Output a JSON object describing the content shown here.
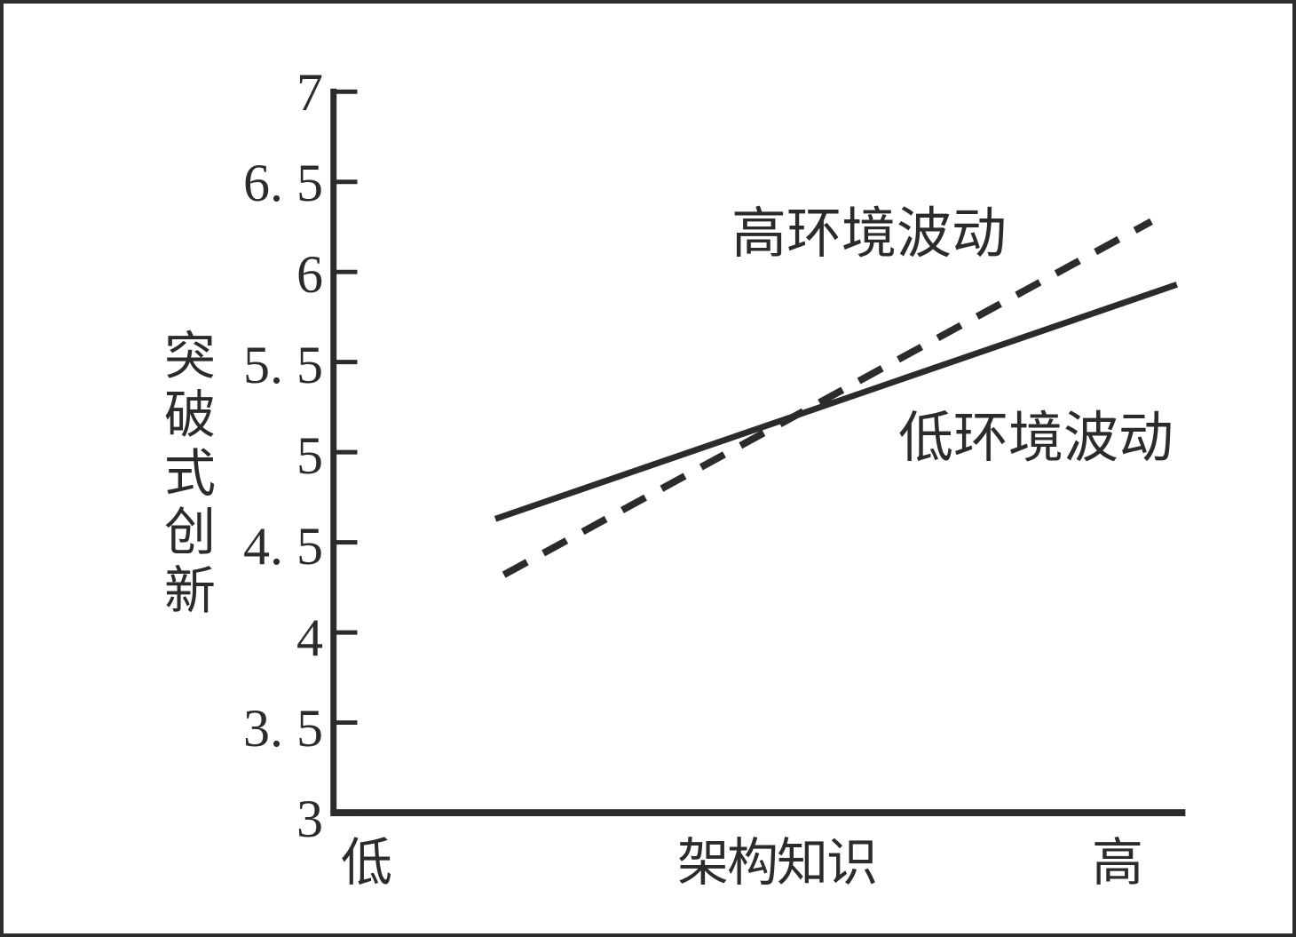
{
  "window": {
    "background": "#ffffff",
    "border_color": "#2e2e2e",
    "ink_color": "#2b2b2b"
  },
  "chart_data": {
    "type": "line",
    "title": "",
    "xlabel": "架构知识",
    "ylabel": "突破式创新",
    "x_axis_end_labels": {
      "low": "低",
      "high": "高"
    },
    "ylim": [
      3,
      7
    ],
    "yticks": [
      3,
      3.5,
      4,
      4.5,
      5,
      5.5,
      6,
      6.5,
      7
    ],
    "ytick_labels": [
      "3",
      "3. 5",
      "4",
      "4. 5",
      "5",
      "5. 5",
      "6",
      "6. 5",
      "7"
    ],
    "grid": false,
    "legend_position": "direct-line-labels",
    "line_color": "#2b2b2b",
    "series": [
      {
        "name": "高环境波动",
        "line_style": "dashed",
        "points": [
          {
            "x": 0.2,
            "y": 4.32
          },
          {
            "x": 0.96,
            "y": 6.28
          }
        ]
      },
      {
        "name": "低环境波动",
        "line_style": "solid",
        "points": [
          {
            "x": 0.19,
            "y": 4.63
          },
          {
            "x": 0.99,
            "y": 5.93
          }
        ]
      }
    ]
  }
}
